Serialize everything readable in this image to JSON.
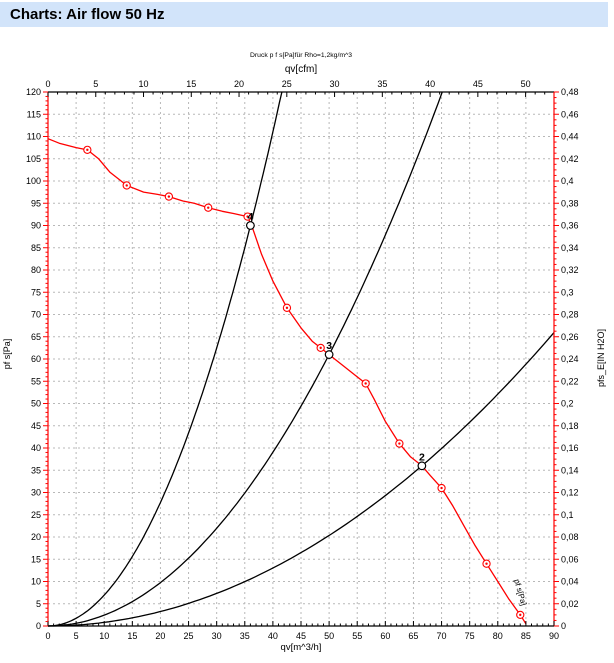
{
  "header": {
    "title": "Charts: Air flow 50 Hz",
    "bg": "#d2e4fa",
    "text_color": "#000000"
  },
  "chart_data": {
    "type": "line",
    "title_note": "Druck p f s[Pa]für Rho=1,2kg/m^3",
    "grid": {
      "x_step": 5,
      "y_step": 5,
      "color": "#b8b8b8",
      "dash": "2,3",
      "on": true
    },
    "axes": {
      "top": {
        "label": "qv[cfm]",
        "min": 0,
        "max": 50,
        "major": 5,
        "minor": 1,
        "color": "#000000",
        "cfm_to_m3h": 1.699
      },
      "bottom": {
        "label": "qv[m^3/h]",
        "min": 0,
        "max": 90,
        "major": 5,
        "minor": 1,
        "color": "#000000"
      },
      "left": {
        "label": "pf s[Pa]",
        "min": 0,
        "max": 120,
        "major": 5,
        "minor": 1,
        "color": "#ff0000"
      },
      "right": {
        "label": "pfs_E[IN H2O]",
        "min": 0,
        "max": 0.48,
        "major": 0.02,
        "minor": 0.005,
        "color": "#ff0000",
        "decimal_style": "comma"
      }
    },
    "series": [
      {
        "name": "fan-curve",
        "legend": "pf s[Pa]",
        "color": "#ff0000",
        "marker": "circled-dot",
        "end_label": "pf s[Pa]",
        "points": [
          [
            0,
            109.5
          ],
          [
            2,
            108.5
          ],
          [
            5,
            107.5
          ],
          [
            7,
            107
          ],
          [
            9,
            105
          ],
          [
            11,
            102
          ],
          [
            14,
            99
          ],
          [
            17,
            97.5
          ],
          [
            19.5,
            97
          ],
          [
            21.5,
            96.5
          ],
          [
            24,
            95.5
          ],
          [
            26,
            95
          ],
          [
            28.5,
            94
          ],
          [
            31,
            93.2
          ],
          [
            33,
            92.7
          ],
          [
            35.5,
            92
          ],
          [
            36.5,
            89
          ],
          [
            38,
            83.5
          ],
          [
            40,
            77.5
          ],
          [
            42.5,
            71.5
          ],
          [
            45,
            67
          ],
          [
            47,
            64
          ],
          [
            48.5,
            62.5
          ],
          [
            50,
            61
          ],
          [
            52.5,
            58.5
          ],
          [
            54.5,
            56.5
          ],
          [
            56.5,
            54.5
          ],
          [
            58,
            51
          ],
          [
            60,
            46
          ],
          [
            62.5,
            41
          ],
          [
            64.5,
            38
          ],
          [
            66.5,
            36
          ],
          [
            68,
            33.8
          ],
          [
            70,
            31
          ],
          [
            72,
            27
          ],
          [
            74,
            22.5
          ],
          [
            76,
            18
          ],
          [
            78,
            14
          ],
          [
            80,
            10
          ],
          [
            82,
            6
          ],
          [
            84,
            2.5
          ],
          [
            85,
            0.5
          ]
        ],
        "markers": [
          [
            7,
            107
          ],
          [
            14,
            99
          ],
          [
            21.5,
            96.5
          ],
          [
            28.5,
            94
          ],
          [
            35.5,
            92
          ],
          [
            42.5,
            71.5
          ],
          [
            48.5,
            62.5
          ],
          [
            56.5,
            54.5
          ],
          [
            62.5,
            41
          ],
          [
            70,
            31
          ],
          [
            78,
            14
          ],
          [
            84,
            2.5
          ]
        ]
      },
      {
        "name": "system-curve-4",
        "color": "#000000",
        "k": 0.0694,
        "q_max": 41.6
      },
      {
        "name": "system-curve-3",
        "color": "#000000",
        "k": 0.0244,
        "q_max": 70.1
      },
      {
        "name": "system-curve-2",
        "color": "#000000",
        "k": 0.00814,
        "q_max": 90
      }
    ],
    "operating_points": [
      {
        "label": "4",
        "q": 36,
        "p": 90
      },
      {
        "label": "3",
        "q": 50,
        "p": 61
      },
      {
        "label": "2",
        "q": 66.5,
        "p": 36
      }
    ]
  }
}
